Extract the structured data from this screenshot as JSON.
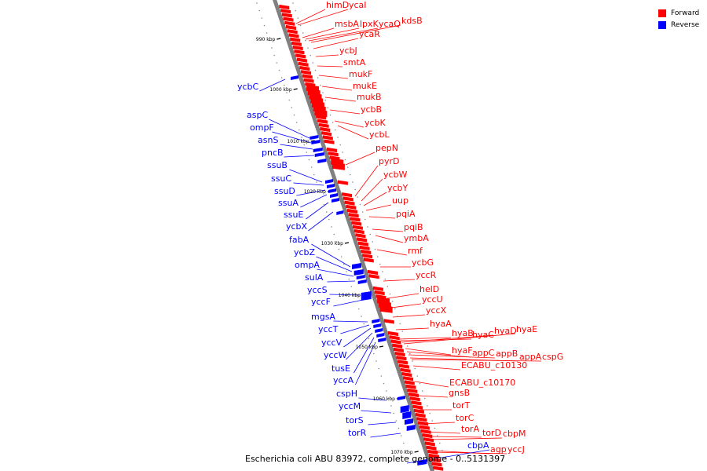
{
  "caption": "Escherichia coli ABU 83972, complete genome - 0..5131397",
  "legend": [
    {
      "label": "Forward",
      "color": "#ff0000"
    },
    {
      "label": "Reverse",
      "color": "#0000ff"
    }
  ],
  "ticks": [
    "990 kbp",
    "1000 kbp",
    "1010 kbp",
    "1020 kbp",
    "1030 kbp",
    "1040 kbp",
    "1050 kbp",
    "1060 kbp",
    "1070 kbp"
  ],
  "forward_genes": [
    "himD",
    "ycaI",
    "msbA",
    "lpxK",
    "ycaQ",
    "kdsB",
    "ycaR",
    "ycbJ",
    "smtA",
    "mukF",
    "mukE",
    "mukB",
    "ycbB",
    "ycbK",
    "ycbL",
    "pepN",
    "pyrD",
    "ycbW",
    "ycbY",
    "uup",
    "pqiA",
    "pqiB",
    "ymbA",
    "rmf",
    "ycbG",
    "yccR",
    "helD",
    "yccU",
    "yccX",
    "hyaA",
    "hyaB",
    "hyaC",
    "hyaD",
    "hyaE",
    "hyaF",
    "appC",
    "appB",
    "appA",
    "cspG",
    "ECABU_c10130",
    "ECABU_c10170",
    "gnsB",
    "torT",
    "torC",
    "torA",
    "torD",
    "cbpM",
    "agp",
    "yccJ"
  ],
  "reverse_genes": [
    "ycbC",
    "aspC",
    "ompF",
    "asnS",
    "pncB",
    "ssuB",
    "ssuC",
    "ssuD",
    "ssuA",
    "ssuE",
    "ycbX",
    "fabA",
    "ycbZ",
    "ompA",
    "sulA",
    "yccS",
    "yccF",
    "mgsA",
    "yccT",
    "yccV",
    "yccW",
    "tusE",
    "yccA",
    "cspH",
    "yccM",
    "torS",
    "torR",
    "cbpA"
  ],
  "colors": {
    "forward": "#ff0000",
    "reverse": "#0000ff",
    "axis": "#808080"
  }
}
